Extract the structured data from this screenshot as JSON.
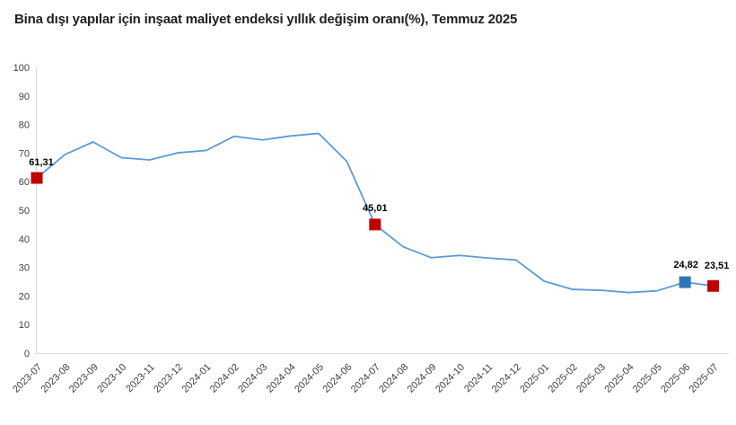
{
  "title": "Bina dışı yapılar için inşaat maliyet endeksi yıllık değişim oranı(%), Temmuz 2025",
  "chart_data": {
    "type": "line",
    "title": "Bina dışı yapılar için inşaat maliyet endeksi yıllık değişim oranı(%), Temmuz 2025",
    "xlabel": "",
    "ylabel": "",
    "ylim": [
      0,
      100
    ],
    "ytick_step": 10,
    "grid": false,
    "legend": "none",
    "line_color": "#5B9BD5",
    "categories": [
      "2023-07",
      "2023-08",
      "2023-09",
      "2023-10",
      "2023-11",
      "2023-12",
      "2024-01",
      "2024-02",
      "2024-03",
      "2024-04",
      "2024-05",
      "2024-06",
      "2024-07",
      "2024-08",
      "2024-09",
      "2024-10",
      "2024-11",
      "2024-12",
      "2025-01",
      "2025-02",
      "2025-03",
      "2025-04",
      "2025-05",
      "2025-06",
      "2025-07"
    ],
    "series": [
      {
        "name": "Yıllık değişim oranı (%)",
        "values": [
          61.31,
          69.5,
          73.9,
          68.4,
          67.6,
          70.1,
          70.9,
          75.9,
          74.6,
          76.0,
          76.9,
          67.1,
          45.01,
          37.2,
          33.4,
          34.2,
          33.3,
          32.6,
          25.2,
          22.3,
          22.0,
          21.2,
          21.8,
          24.82,
          23.51
        ]
      }
    ],
    "labeled_points": [
      {
        "index": 0,
        "category": "2023-07",
        "value": 61.31,
        "label": "61,31",
        "marker_color": "#C00000"
      },
      {
        "index": 12,
        "category": "2024-07",
        "value": 45.01,
        "label": "45,01",
        "marker_color": "#C00000"
      },
      {
        "index": 23,
        "category": "2025-06",
        "value": 24.82,
        "label": "24,82",
        "marker_color": "#2E75B6"
      },
      {
        "index": 24,
        "category": "2025-07",
        "value": 23.51,
        "label": "23,51",
        "marker_color": "#C00000"
      }
    ]
  },
  "colors": {
    "background": "#FFFFFF",
    "axis_line": "#D9D9D9",
    "tick_label": "#404040",
    "point_label": "#000000"
  }
}
